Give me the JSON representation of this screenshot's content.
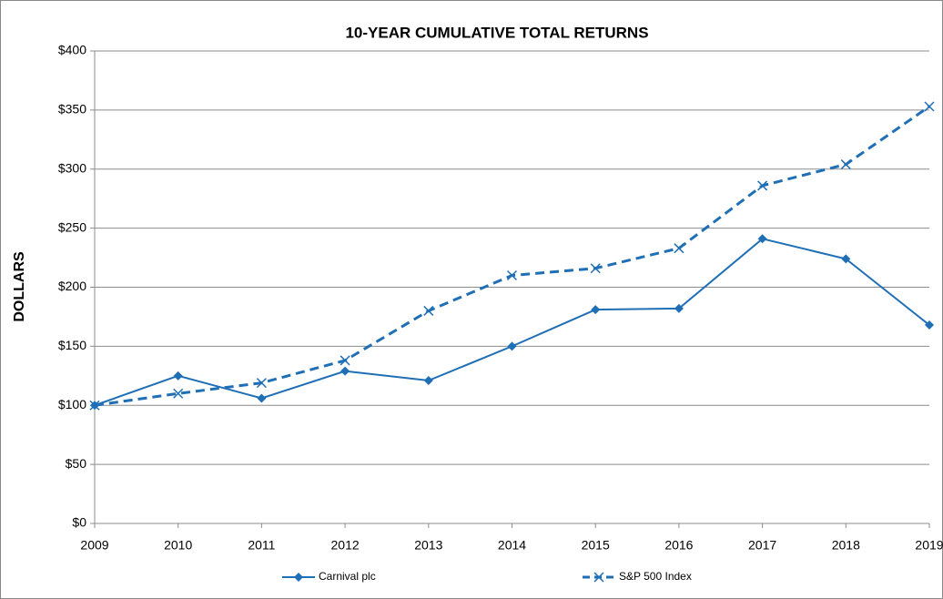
{
  "chart_data": {
    "type": "line",
    "title": "10-YEAR CUMULATIVE TOTAL RETURNS",
    "y_label": "DOLLARS",
    "categories": [
      "2009",
      "2010",
      "2011",
      "2012",
      "2013",
      "2014",
      "2015",
      "2016",
      "2017",
      "2018",
      "2019"
    ],
    "series": [
      {
        "name": "Carnival plc",
        "color": "#1f6fb6",
        "marker": "diamond",
        "dashed": false,
        "values": [
          100,
          125,
          106,
          129,
          121,
          150,
          181,
          182,
          241,
          224,
          168
        ]
      },
      {
        "name": "S&P 500 Index",
        "color": "#1f6fb6",
        "marker": "x",
        "dashed": true,
        "values": [
          100,
          110,
          119,
          138,
          180,
          210,
          216,
          233,
          286,
          304,
          353
        ]
      }
    ],
    "ylim": [
      0,
      400
    ],
    "yticks": [
      {
        "value": 0,
        "label": "$0"
      },
      {
        "value": 50,
        "label": "$50"
      },
      {
        "value": 100,
        "label": "$100"
      },
      {
        "value": 150,
        "label": "$150"
      },
      {
        "value": 200,
        "label": "$200"
      },
      {
        "value": 250,
        "label": "$250"
      },
      {
        "value": 300,
        "label": "$300"
      },
      {
        "value": 350,
        "label": "$350"
      },
      {
        "value": 400,
        "label": "$400"
      }
    ],
    "grid": true,
    "legend": "bottom"
  }
}
